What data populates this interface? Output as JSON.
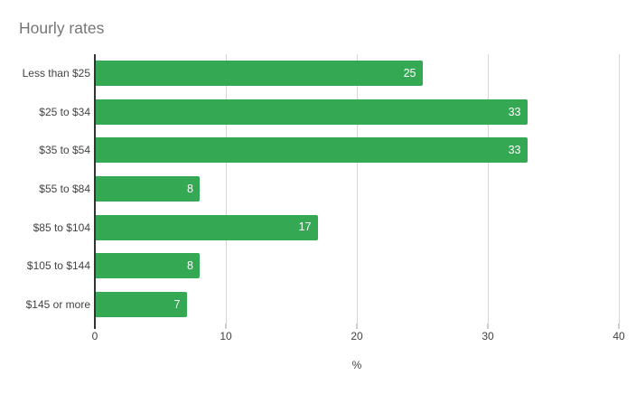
{
  "chart_data": {
    "type": "bar",
    "orientation": "horizontal",
    "title": "Hourly rates",
    "categories": [
      "Less than $25",
      "$25 to $34",
      "$35 to $54",
      "$55 to $84",
      "$85 to $104",
      "$105 to $144",
      "$145 or more"
    ],
    "values": [
      25,
      33,
      33,
      8,
      17,
      8,
      7
    ],
    "xlabel": "%",
    "xlim": [
      0,
      40
    ],
    "xticks": [
      0,
      10,
      20,
      30,
      40
    ],
    "grid": true,
    "legend": "none",
    "colors": {
      "bar": "#34a853",
      "value_label": "#ffffff",
      "title": "#757575",
      "gridline": "#d6d6d6",
      "axis_line": "#333333",
      "labels": "#424242"
    }
  }
}
